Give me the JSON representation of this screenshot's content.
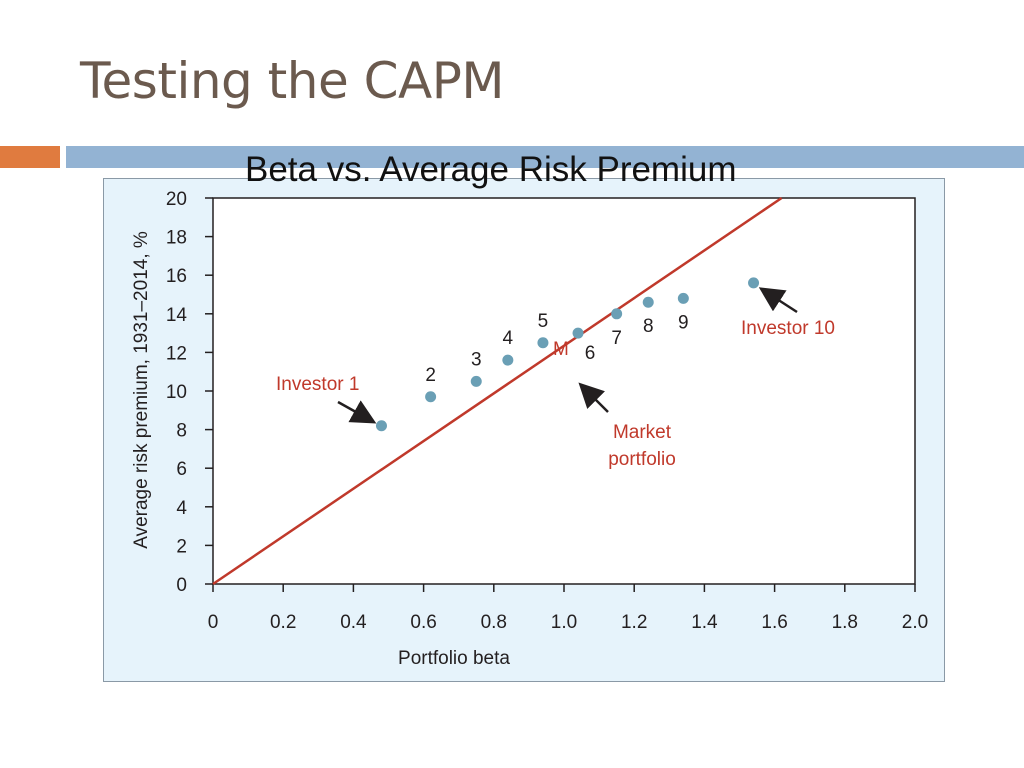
{
  "slide": {
    "title": "Testing the CAPM",
    "accent_colors": {
      "orange": "#e07b3f",
      "blue": "#93b3d3"
    }
  },
  "chart_data": {
    "type": "scatter",
    "title": "Beta vs. Average Risk Premium",
    "xlabel": "Portfolio beta",
    "ylabel": "Average risk premium, 1931–2014, %",
    "xlim": [
      0,
      2.0
    ],
    "ylim": [
      0,
      20
    ],
    "x_ticks": [
      "0",
      "0.2",
      "0.4",
      "0.6",
      "0.8",
      "1.0",
      "1.2",
      "1.4",
      "1.6",
      "1.8",
      "2.0"
    ],
    "y_ticks": [
      "0",
      "2",
      "4",
      "6",
      "8",
      "10",
      "12",
      "14",
      "16",
      "18",
      "20"
    ],
    "grid": false,
    "line": {
      "x": [
        0,
        1.62
      ],
      "y": [
        0,
        20
      ],
      "color": "#c0392b"
    },
    "point_color": "#6a9fb5",
    "points": [
      {
        "x": 0.48,
        "y": 8.2,
        "label": ""
      },
      {
        "x": 0.62,
        "y": 9.7,
        "label": "2"
      },
      {
        "x": 0.75,
        "y": 10.5,
        "label": "3"
      },
      {
        "x": 0.84,
        "y": 11.6,
        "label": "4"
      },
      {
        "x": 0.94,
        "y": 12.5,
        "label": "5"
      },
      {
        "x": 1.04,
        "y": 13.0,
        "label": "6"
      },
      {
        "x": 1.15,
        "y": 14.0,
        "label": "7"
      },
      {
        "x": 1.24,
        "y": 14.6,
        "label": "8"
      },
      {
        "x": 1.34,
        "y": 14.8,
        "label": "9"
      },
      {
        "x": 1.54,
        "y": 15.6,
        "label": ""
      }
    ],
    "market_label": "M",
    "annotations": [
      {
        "text": "Investor 1",
        "color": "#c0392b"
      },
      {
        "text": "Investor 10",
        "color": "#c0392b"
      },
      {
        "text": "Market",
        "color": "#c0392b"
      },
      {
        "text": "portfolio",
        "color": "#c0392b"
      }
    ]
  }
}
